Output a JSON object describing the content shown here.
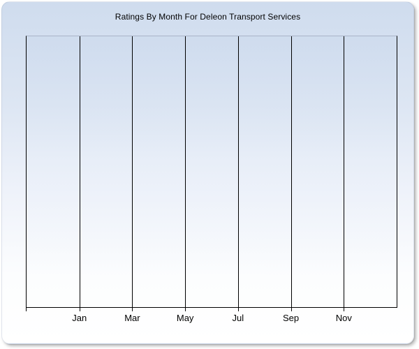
{
  "chart_data": {
    "type": "line",
    "title": "Ratings By Month For Deleon Transport Services",
    "categories": [
      "Jan",
      "Mar",
      "May",
      "Jul",
      "Sep",
      "Nov"
    ],
    "series": [],
    "xlabel": "",
    "ylabel": "",
    "y_tick_labels": [],
    "legend": "none",
    "grid": "vertical-only",
    "x_gridline_count": 8,
    "plot_area_empty": true
  },
  "colors": {
    "panel_gradient_top": "#cfdcee",
    "panel_gradient_bottom": "#ffffff",
    "plot_top_border": "#a9b4c8",
    "gridline": "#000000",
    "axis": "#000000",
    "text": "#000000",
    "page_background": "#ffffff"
  }
}
